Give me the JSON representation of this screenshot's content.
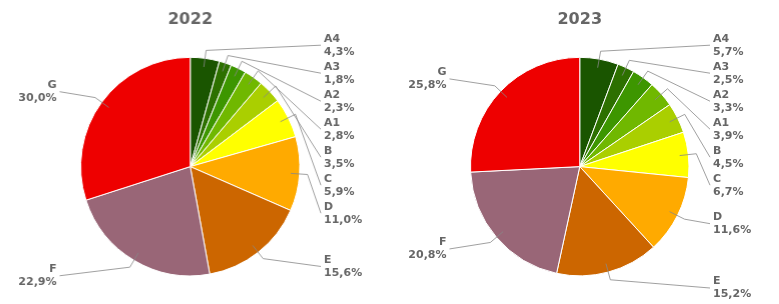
{
  "chart_data": [
    {
      "type": "pie",
      "title": "2022",
      "categories": [
        "A4",
        "A3",
        "A2",
        "A1",
        "B",
        "C",
        "D",
        "E",
        "F",
        "G"
      ],
      "values": [
        4.3,
        1.8,
        2.3,
        2.8,
        3.5,
        5.9,
        11.0,
        15.6,
        22.9,
        30.0
      ],
      "value_labels": [
        "4,3%",
        "1,8%",
        "2,3%",
        "2,8%",
        "3,5%",
        "5,9%",
        "11,0%",
        "15,6%",
        "22,9%",
        "30,0%"
      ],
      "colors": [
        "#1a5500",
        "#2d7000",
        "#3d9600",
        "#70b800",
        "#aacf00",
        "#ffff00",
        "#ffaa00",
        "#cc6600",
        "#996677",
        "#ee0000"
      ],
      "data_labels": true
    },
    {
      "type": "pie",
      "title": "2023",
      "categories": [
        "A4",
        "A3",
        "A2",
        "A1",
        "B",
        "C",
        "D",
        "E",
        "F",
        "G"
      ],
      "values": [
        5.7,
        2.5,
        3.3,
        3.9,
        4.5,
        6.7,
        11.6,
        15.2,
        20.8,
        25.8
      ],
      "value_labels": [
        "5,7%",
        "2,5%",
        "3,3%",
        "3,9%",
        "4,5%",
        "6,7%",
        "11,6%",
        "15,2%",
        "20,8%",
        "25,8%"
      ],
      "colors": [
        "#1a5500",
        "#2d7000",
        "#3d9600",
        "#70b800",
        "#aacf00",
        "#ffff00",
        "#ffaa00",
        "#cc6600",
        "#996677",
        "#ee0000"
      ],
      "data_labels": true
    }
  ]
}
